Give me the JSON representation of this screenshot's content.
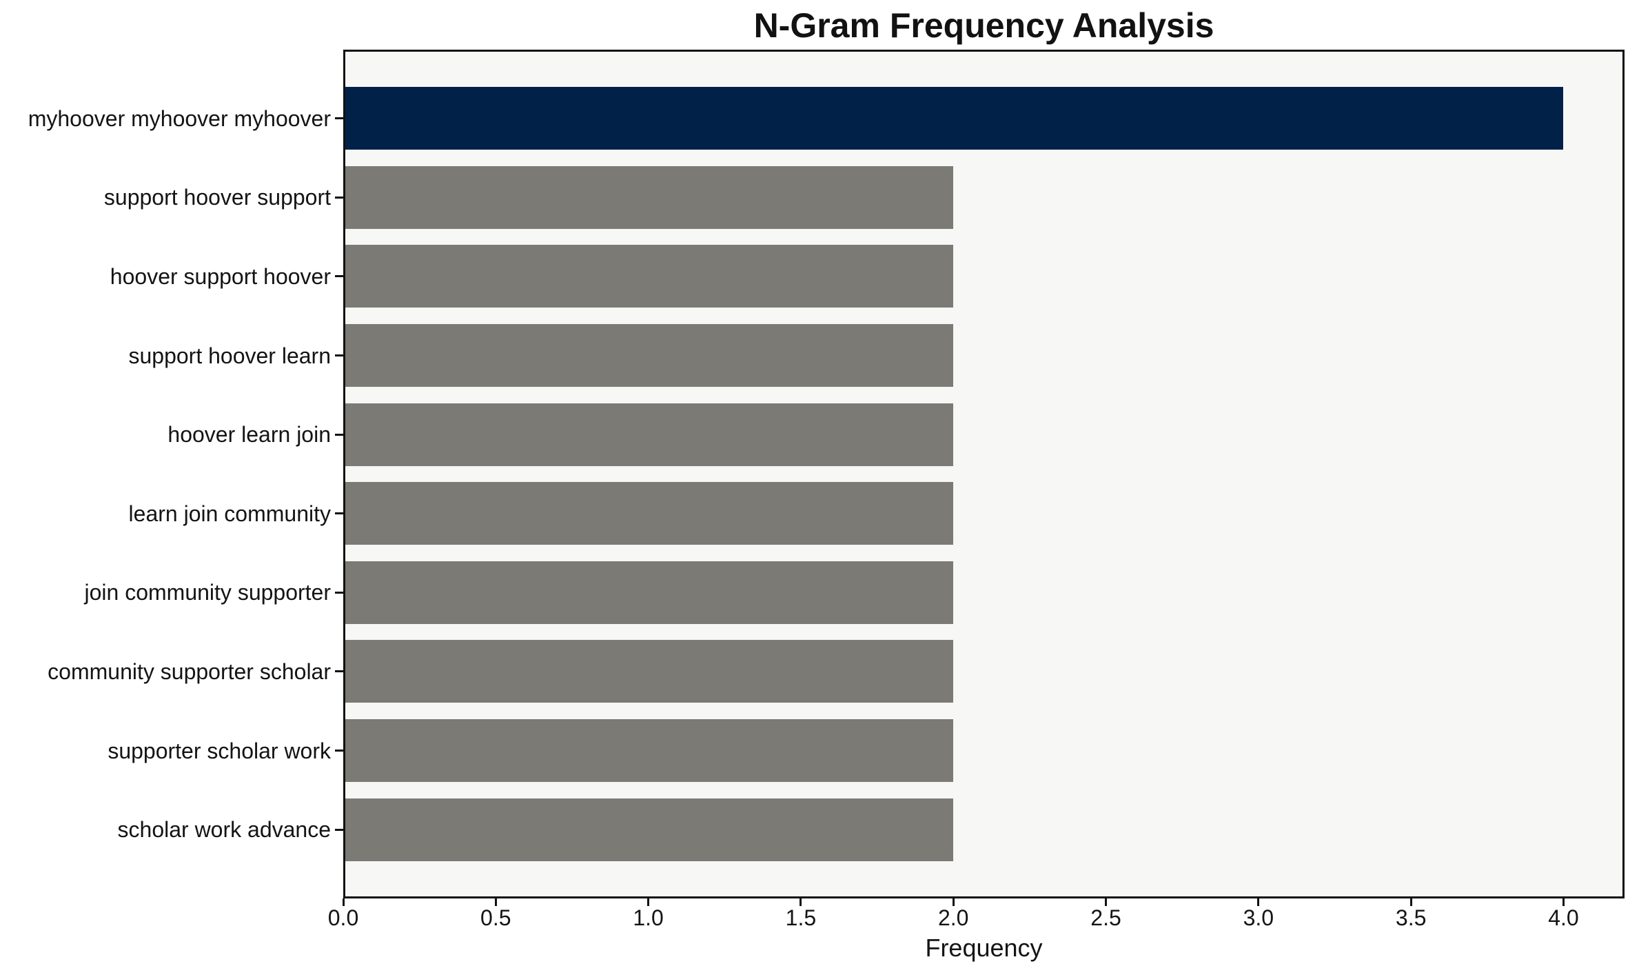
{
  "chart_data": {
    "type": "bar",
    "orientation": "horizontal",
    "title": "N-Gram Frequency Analysis",
    "xlabel": "Frequency",
    "ylabel": "",
    "categories": [
      "myhoover myhoover myhoover",
      "support hoover support",
      "hoover support hoover",
      "support hoover learn",
      "hoover learn join",
      "learn join community",
      "join community supporter",
      "community supporter scholar",
      "supporter scholar work",
      "scholar work advance"
    ],
    "values": [
      4,
      2,
      2,
      2,
      2,
      2,
      2,
      2,
      2,
      2
    ],
    "bar_colors": [
      "#022149",
      "#7B7A75",
      "#7B7A75",
      "#7B7A75",
      "#7B7A75",
      "#7B7A75",
      "#7B7A75",
      "#7B7A75",
      "#7B7A75",
      "#7B7A75"
    ],
    "xlim": [
      0,
      4.2
    ],
    "xticks": [
      0,
      0.5,
      1,
      1.5,
      2,
      2.5,
      3,
      3.5,
      4
    ],
    "xtick_labels": [
      "0.0",
      "0.5",
      "1.0",
      "1.5",
      "2.0",
      "2.5",
      "3.0",
      "3.5",
      "4.0"
    ],
    "grid": false,
    "legend": null,
    "colors": {
      "highlight_bar": "#022149",
      "default_bar": "#7B7A75",
      "plot_background": "#F7F7F6",
      "figure_background": "#FFFFFF",
      "spine": "#111111",
      "text": "#141414"
    }
  }
}
